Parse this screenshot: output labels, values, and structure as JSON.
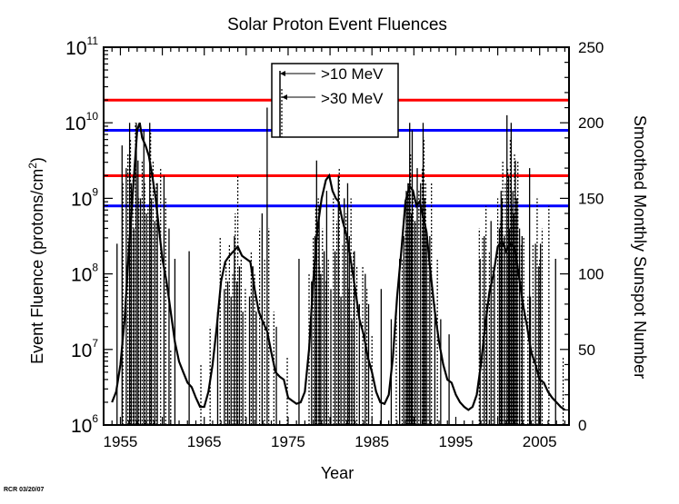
{
  "chart_data": {
    "type": "line",
    "title": "Solar Proton Event Fluences",
    "xlabel": "Year",
    "ylabel_left": "Event Fluence  (protons/cm",
    "ylabel_left_sup": "2",
    "ylabel_left_close": ")",
    "ylabel_right": "Smoothed Monthly Sunspot Number",
    "xlim": [
      1953,
      2008.5
    ],
    "ylim_left_log10": [
      6,
      11
    ],
    "ylim_right": [
      0,
      250
    ],
    "x_tick_labels": [
      "1955",
      "1965",
      "1975",
      "1985",
      "1995",
      "2005"
    ],
    "x_tick_values": [
      1955,
      1965,
      1975,
      1985,
      1995,
      2005
    ],
    "y_left_ticks": [
      {
        "base": "10",
        "exp": "6",
        "log": 6
      },
      {
        "base": "10",
        "exp": "7",
        "log": 7
      },
      {
        "base": "10",
        "exp": "8",
        "log": 8
      },
      {
        "base": "10",
        "exp": "9",
        "log": 9
      },
      {
        "base": "10",
        "exp": "10",
        "log": 10
      },
      {
        "base": "10",
        "exp": "11",
        "log": 11
      }
    ],
    "y_right_ticks": [
      "0",
      "50",
      "100",
      "150",
      "200",
      "250"
    ],
    "y_right_tick_values": [
      0,
      50,
      100,
      150,
      200,
      250
    ],
    "legend": {
      "position": "top-center",
      "entries": [
        {
          "label": ">10 MeV",
          "style": "solid"
        },
        {
          "label": ">30 MeV",
          "style": "dotted"
        }
      ]
    },
    "reference_lines": [
      {
        "name": ">10 MeV upper",
        "log_fluence": 10.3,
        "color": "#ff0000"
      },
      {
        "name": ">30 MeV upper",
        "log_fluence": 9.9,
        "color": "#0000ff"
      },
      {
        "name": ">10 MeV lower",
        "log_fluence": 9.3,
        "color": "#ff0000"
      },
      {
        "name": ">30 MeV lower",
        "log_fluence": 8.9,
        "color": "#0000ff"
      }
    ],
    "sunspot_series": {
      "name": "Smoothed Monthly Sunspot Number",
      "x": [
        1954.0,
        1954.5,
        1955.0,
        1955.5,
        1956.0,
        1956.5,
        1957.0,
        1957.3,
        1957.6,
        1958.0,
        1958.4,
        1958.8,
        1959.2,
        1959.6,
        1960.0,
        1960.5,
        1961.0,
        1961.5,
        1962.0,
        1962.5,
        1963.0,
        1963.5,
        1964.0,
        1964.5,
        1965.0,
        1965.5,
        1966.0,
        1966.5,
        1967.0,
        1967.5,
        1968.0,
        1968.5,
        1969.0,
        1969.5,
        1970.0,
        1970.5,
        1971.0,
        1971.5,
        1972.0,
        1972.5,
        1973.0,
        1973.5,
        1974.0,
        1974.5,
        1975.0,
        1975.5,
        1976.0,
        1976.5,
        1977.0,
        1977.5,
        1978.0,
        1978.5,
        1979.0,
        1979.5,
        1979.9,
        1980.3,
        1980.7,
        1981.0,
        1981.5,
        1982.0,
        1982.5,
        1983.0,
        1983.5,
        1984.0,
        1984.5,
        1985.0,
        1985.5,
        1986.0,
        1986.5,
        1987.0,
        1987.5,
        1988.0,
        1988.5,
        1989.0,
        1989.5,
        1989.9,
        1990.3,
        1990.7,
        1991.0,
        1991.5,
        1992.0,
        1992.5,
        1993.0,
        1993.5,
        1994.0,
        1994.5,
        1995.0,
        1995.5,
        1996.0,
        1996.5,
        1997.0,
        1997.5,
        1998.0,
        1998.5,
        1999.0,
        1999.5,
        2000.0,
        2000.5,
        2001.0,
        2001.5,
        2002.0,
        2002.5,
        2003.0,
        2003.5,
        2004.0,
        2004.5,
        2005.0,
        2005.5,
        2006.0,
        2006.5,
        2007.0,
        2007.5,
        2008.0
      ],
      "values": [
        15,
        22,
        40,
        70,
        115,
        155,
        195,
        200,
        190,
        185,
        178,
        165,
        150,
        130,
        110,
        95,
        75,
        55,
        42,
        35,
        28,
        25,
        18,
        12,
        12,
        22,
        40,
        65,
        95,
        108,
        112,
        115,
        118,
        112,
        110,
        108,
        90,
        75,
        68,
        62,
        48,
        35,
        32,
        30,
        18,
        16,
        14,
        15,
        22,
        50,
        95,
        130,
        150,
        162,
        165,
        155,
        150,
        148,
        135,
        125,
        108,
        90,
        70,
        60,
        45,
        35,
        22,
        15,
        14,
        20,
        45,
        85,
        115,
        148,
        158,
        155,
        145,
        148,
        140,
        128,
        100,
        75,
        55,
        40,
        30,
        28,
        20,
        15,
        12,
        10,
        12,
        20,
        40,
        65,
        88,
        100,
        118,
        122,
        115,
        120,
        118,
        100,
        80,
        65,
        48,
        40,
        30,
        28,
        22,
        18,
        15,
        12,
        10
      ]
    },
    "events_10mev": [
      1954.6,
      1955.2,
      1955.7,
      1956.1,
      1956.3,
      1956.6,
      1956.9,
      1957.1,
      1957.4,
      1957.8,
      1958.1,
      1958.5,
      1958.7,
      1959.1,
      1959.4,
      1960.2,
      1960.8,
      1961.5,
      1963.2,
      1966.6,
      1967.4,
      1967.8,
      1968.2,
      1968.6,
      1968.9,
      1969.2,
      1969.6,
      1970.4,
      1970.8,
      1971.2,
      1971.9,
      1972.5,
      1973.6,
      1976.3,
      1977.8,
      1978.2,
      1978.4,
      1978.7,
      1978.9,
      1979.3,
      1979.6,
      1980.1,
      1980.6,
      1981.0,
      1981.3,
      1981.7,
      1982.1,
      1982.3,
      1982.6,
      1982.9,
      1983.5,
      1984.2,
      1984.6,
      1986.1,
      1987.3,
      1988.3,
      1988.8,
      1989.1,
      1989.3,
      1989.5,
      1989.7,
      1989.8,
      1990.1,
      1990.4,
      1990.8,
      1991.1,
      1991.3,
      1991.5,
      1991.9,
      1992.5,
      1993.2,
      1994.2,
      1997.9,
      1998.4,
      1998.7,
      1999.2,
      1999.6,
      2000.2,
      2000.4,
      2000.5,
      2000.8,
      2001.1,
      2001.3,
      2001.4,
      2001.6,
      2001.8,
      2001.9,
      2002.1,
      2002.3,
      2002.6,
      2002.9,
      2003.8,
      2003.9,
      2004.5,
      2004.9,
      2005.1,
      2006.9
    ],
    "events_10mev_log": [
      8.4,
      9.7,
      9.4,
      10.0,
      9.2,
      8.6,
      10.0,
      9.5,
      9.0,
      9.9,
      8.8,
      10.0,
      9.0,
      8.7,
      9.2,
      9.3,
      8.6,
      8.2,
      8.3,
      7.5,
      7.8,
      7.9,
      7.7,
      8.5,
      7.9,
      8.1,
      7.5,
      7.7,
      8.1,
      7.5,
      8.8,
      10.2,
      7.3,
      8.2,
      7.9,
      8.5,
      9.5,
      8.9,
      8.0,
      8.3,
      9.1,
      7.8,
      8.3,
      9.3,
      7.7,
      9.0,
      9.2,
      8.5,
      7.4,
      8.3,
      7.6,
      8.0,
      7.6,
      7.8,
      7.4,
      8.2,
      8.5,
      9.1,
      9.2,
      10.0,
      8.8,
      9.9,
      8.7,
      9.4,
      9.2,
      10.0,
      9.0,
      8.5,
      8.5,
      7.6,
      7.4,
      7.2,
      8.2,
      8.5,
      7.6,
      8.7,
      8.0,
      8.6,
      9.1,
      9.0,
      8.5,
      10.1,
      9.3,
      8.6,
      10.0,
      9.1,
      8.8,
      9.5,
      9.0,
      8.6,
      8.5,
      9.4,
      7.7,
      8.4,
      8.1,
      8.4,
      8.2
    ],
    "events_30mev": [
      1955.3,
      1955.9,
      1956.2,
      1956.5,
      1956.8,
      1957.2,
      1957.6,
      1957.9,
      1958.3,
      1958.6,
      1958.9,
      1959.3,
      1959.8,
      1960.4,
      1961.0,
      1964.6,
      1965.7,
      1966.9,
      1967.6,
      1968.0,
      1968.4,
      1968.7,
      1969.0,
      1969.4,
      1969.9,
      1970.6,
      1971.0,
      1971.6,
      1972.2,
      1972.7,
      1973.3,
      1974.9,
      1977.5,
      1978.0,
      1978.3,
      1978.6,
      1978.8,
      1979.1,
      1979.5,
      1979.8,
      1980.4,
      1980.8,
      1981.1,
      1981.5,
      1981.9,
      1982.2,
      1982.5,
      1982.8,
      1983.2,
      1983.9,
      1984.4,
      1985.0,
      1987.9,
      1988.6,
      1989.0,
      1989.2,
      1989.4,
      1989.6,
      1989.9,
      1990.2,
      1990.6,
      1991.0,
      1991.2,
      1991.4,
      1991.7,
      1992.1,
      1992.8,
      1997.8,
      1998.2,
      1998.6,
      1999.0,
      1999.4,
      2000.0,
      2000.3,
      2000.6,
      2000.9,
      2001.2,
      2001.5,
      2001.7,
      2002.0,
      2002.2,
      2002.4,
      2002.8,
      2003.1,
      2003.6,
      2004.2,
      2004.7,
      2005.0,
      2005.3,
      2006.1,
      2007.8
    ],
    "events_30mev_log": [
      9.2,
      9.6,
      9.8,
      9.3,
      10.0,
      9.0,
      9.5,
      9.2,
      8.9,
      9.9,
      9.5,
      9.2,
      9.4,
      9.0,
      7.0,
      6.8,
      7.3,
      8.5,
      8.2,
      8.4,
      8.0,
      8.8,
      9.3,
      8.2,
      7.8,
      8.3,
      8.0,
      8.6,
      8.2,
      8.6,
      7.5,
      6.9,
      8.0,
      8.5,
      8.9,
      9.0,
      8.1,
      8.6,
      7.9,
      8.2,
      9.0,
      8.7,
      9.4,
      8.4,
      8.8,
      7.8,
      9.0,
      8.3,
      8.1,
      8.1,
      7.8,
      7.2,
      7.5,
      8.2,
      8.6,
      9.0,
      9.2,
      9.6,
      9.1,
      8.7,
      9.1,
      9.4,
      9.8,
      9.2,
      8.4,
      9.2,
      8.2,
      8.6,
      8.5,
      8.9,
      8.3,
      8.1,
      9.0,
      8.7,
      9.5,
      9.2,
      9.4,
      9.8,
      8.9,
      9.6,
      9.0,
      9.5,
      8.4,
      8.5,
      7.7,
      8.4,
      9.0,
      8.2,
      8.6,
      8.9,
      6.9
    ]
  },
  "credit": "RCR 03/20/07"
}
